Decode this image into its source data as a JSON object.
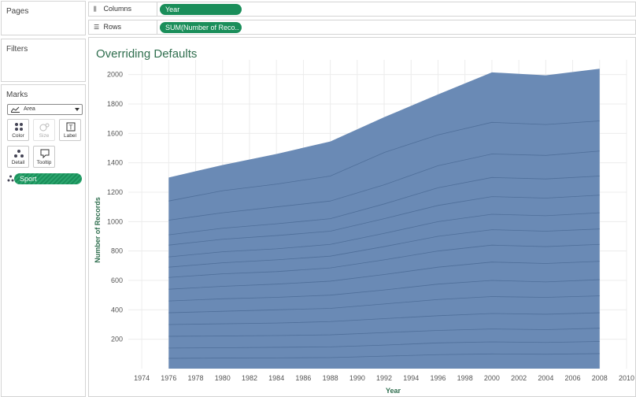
{
  "panels": {
    "pages": "Pages",
    "filters": "Filters",
    "marks": "Marks"
  },
  "marks": {
    "mark_type": "Area",
    "buttons": [
      {
        "label": "Color",
        "icon": "color-dots-icon",
        "enabled": true
      },
      {
        "label": "Size",
        "icon": "size-icon",
        "enabled": false
      },
      {
        "label": "Label",
        "icon": "label-t-icon",
        "enabled": true
      },
      {
        "label": "Detail",
        "icon": "detail-dots-icon",
        "enabled": true
      },
      {
        "label": "Tooltip",
        "icon": "tooltip-icon",
        "enabled": true
      }
    ],
    "detail_field": "Sport"
  },
  "shelves": {
    "columns_label": "Columns",
    "columns_pill": "Year",
    "rows_label": "Rows",
    "rows_pill": "SUM(Number of Reco.."
  },
  "viz": {
    "title": "Overriding Defaults"
  },
  "colors": {
    "pill_green": "#1a8e5a",
    "area_fill": "#6a8ab5",
    "band_line": "#4f6f9a",
    "title_green": "#2f6e4e"
  },
  "chart_data": {
    "type": "area",
    "stacked": true,
    "xlabel": "Year",
    "ylabel": "Number of Records",
    "xlim": [
      1973,
      2010
    ],
    "ylim": [
      0,
      2100
    ],
    "x_ticks": [
      1974,
      1976,
      1978,
      1980,
      1982,
      1984,
      1986,
      1988,
      1990,
      1992,
      1994,
      1996,
      1998,
      2000,
      2002,
      2004,
      2006,
      2008,
      2010
    ],
    "y_ticks": [
      200,
      400,
      600,
      800,
      1000,
      1200,
      1400,
      1600,
      1800,
      2000
    ],
    "x": [
      1976,
      1980,
      1984,
      1988,
      1992,
      1996,
      2000,
      2004,
      2008
    ],
    "totals": [
      1300,
      1385,
      1460,
      1545,
      1710,
      1865,
      2015,
      1995,
      2040
    ],
    "band_boundaries": [
      [
        1140,
        1210,
        1255,
        1310,
        1470,
        1590,
        1675,
        1660,
        1685
      ],
      [
        1010,
        1060,
        1100,
        1140,
        1250,
        1380,
        1460,
        1450,
        1480
      ],
      [
        910,
        955,
        985,
        1020,
        1120,
        1230,
        1300,
        1290,
        1310
      ],
      [
        840,
        880,
        905,
        935,
        1020,
        1110,
        1170,
        1160,
        1180
      ],
      [
        760,
        795,
        815,
        845,
        920,
        1000,
        1050,
        1040,
        1060
      ],
      [
        690,
        720,
        740,
        765,
        830,
        900,
        945,
        935,
        950
      ],
      [
        620,
        645,
        660,
        685,
        740,
        800,
        840,
        830,
        845
      ],
      [
        540,
        560,
        575,
        595,
        640,
        690,
        725,
        715,
        730
      ],
      [
        460,
        475,
        485,
        500,
        535,
        575,
        600,
        590,
        605
      ],
      [
        380,
        390,
        400,
        410,
        440,
        470,
        490,
        485,
        495
      ],
      [
        300,
        305,
        310,
        320,
        340,
        360,
        375,
        370,
        380
      ],
      [
        220,
        222,
        225,
        230,
        245,
        260,
        270,
        265,
        275
      ],
      [
        140,
        142,
        145,
        148,
        160,
        175,
        182,
        178,
        185
      ],
      [
        70,
        72,
        73,
        75,
        85,
        95,
        100,
        98,
        102
      ]
    ]
  }
}
